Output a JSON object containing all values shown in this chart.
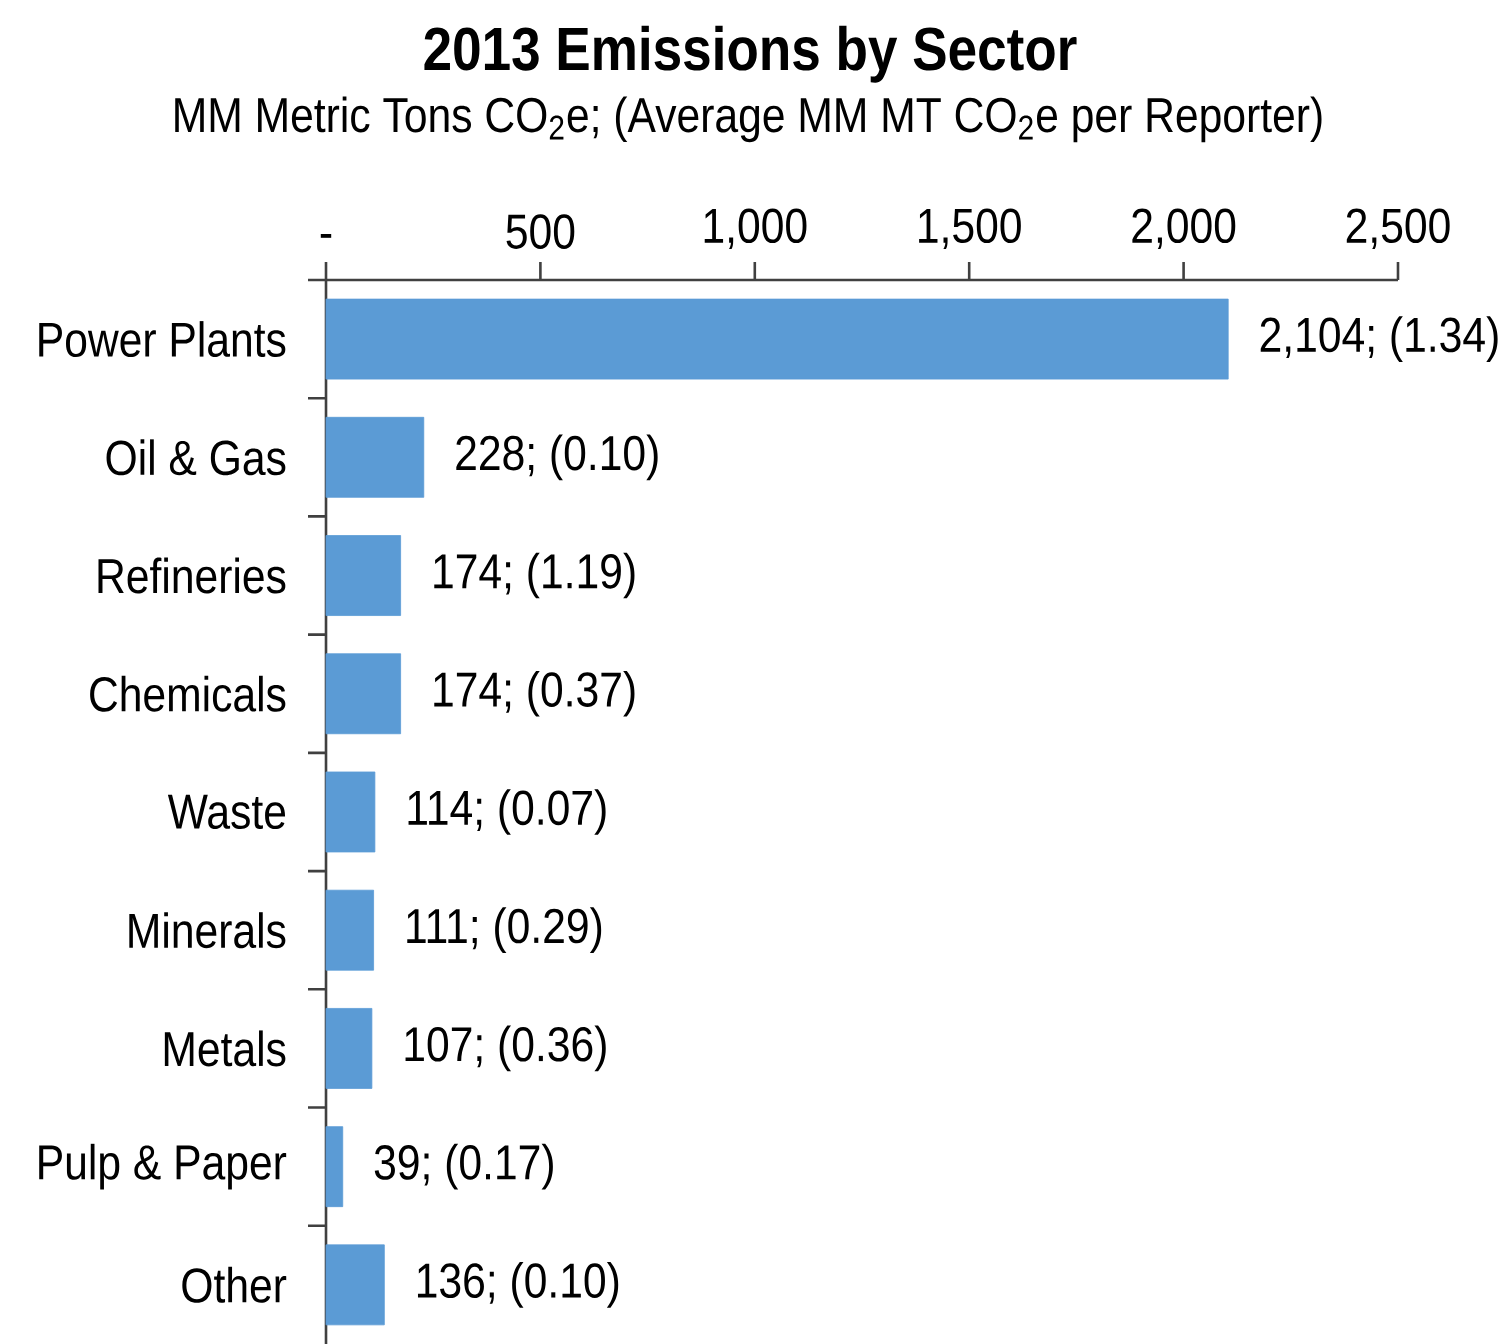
{
  "chart_data": {
    "type": "bar",
    "orientation": "horizontal",
    "title": "2013 Emissions by Sector",
    "subtitle": "MM Metric Tons CO$_{2}$e; (Average MM MT CO$_{2}$e per Reporter)",
    "categories": [
      "Power Plants",
      "Oil & Gas",
      "Refineries",
      "Chemicals",
      "Waste",
      "Minerals",
      "Metals",
      "Pulp & Paper",
      "Other"
    ],
    "values": [
      2104,
      228,
      174,
      174,
      114,
      111,
      107,
      39,
      136
    ],
    "value_labels": [
      "2,104; (1.34)",
      "228; (0.10)",
      "174; (1.19)",
      "174; (0.37)",
      "114; (0.07)",
      "111; (0.29)",
      "107; (0.36)",
      "39; (0.17)",
      "136; (0.10)"
    ],
    "color": "#5b9bd5",
    "xlim": [
      0,
      2500
    ],
    "xticks": [
      {
        "value": 0,
        "label": "-"
      },
      500,
      {
        "value": 1000,
        "label": "1,000"
      },
      {
        "value": 1500,
        "label": "1,500"
      },
      {
        "value": 2000,
        "label": "2,000"
      },
      {
        "value": 2500,
        "label": "2,500"
      }
    ]
  }
}
